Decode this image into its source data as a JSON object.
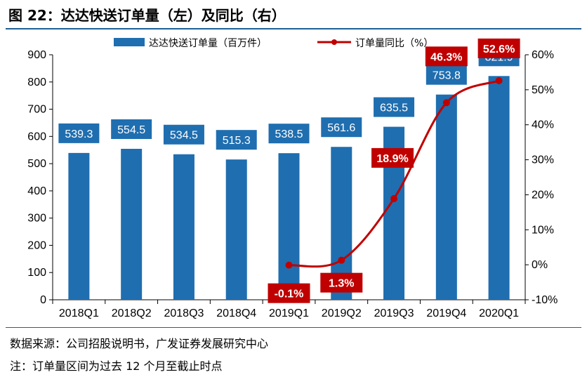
{
  "header": {
    "title": "图 22：达达快送订单量（左）及同比（右）"
  },
  "footer": {
    "source": "数据来源：公司招股说明书，广发证券发展研究中心",
    "note": "注：订单量区间为过去 12 个月至截止时点"
  },
  "colors": {
    "bar": "#1f6eb0",
    "line": "#c00000",
    "rule": "#1f5f95"
  },
  "chart_data": {
    "type": "bar",
    "title": "图 22：达达快送订单量（左）及同比（右）",
    "categories": [
      "2018Q1",
      "2018Q2",
      "2018Q3",
      "2018Q4",
      "2019Q1",
      "2019Q2",
      "2019Q3",
      "2019Q4",
      "2020Q1"
    ],
    "series": [
      {
        "name": "达达快送订单量（百万件）",
        "type": "bar",
        "axis": "left",
        "values": [
          539.3,
          554.5,
          534.5,
          515.3,
          538.5,
          561.6,
          635.5,
          753.8,
          821.9
        ],
        "labels": [
          "539.3",
          "554.5",
          "534.5",
          "515.3",
          "538.5",
          "561.6",
          "635.5",
          "753.8",
          "821.9"
        ]
      },
      {
        "name": "订单量同比（%）",
        "type": "line",
        "axis": "right",
        "values": [
          null,
          null,
          null,
          null,
          -0.1,
          1.3,
          18.9,
          46.3,
          52.6
        ],
        "labels": [
          "",
          "",
          "",
          "",
          "-0.1%",
          "1.3%",
          "18.9%",
          "46.3%",
          "52.6%"
        ]
      }
    ],
    "y_left": {
      "range": [
        0,
        900
      ],
      "ticks": [
        "0",
        "100",
        "200",
        "300",
        "400",
        "500",
        "600",
        "700",
        "800",
        "900"
      ]
    },
    "y_right": {
      "range": [
        -10,
        60
      ],
      "ticks": [
        "-10%",
        "0%",
        "10%",
        "20%",
        "30%",
        "40%",
        "50%",
        "60%"
      ]
    },
    "grid": false,
    "legend": "top-center"
  }
}
